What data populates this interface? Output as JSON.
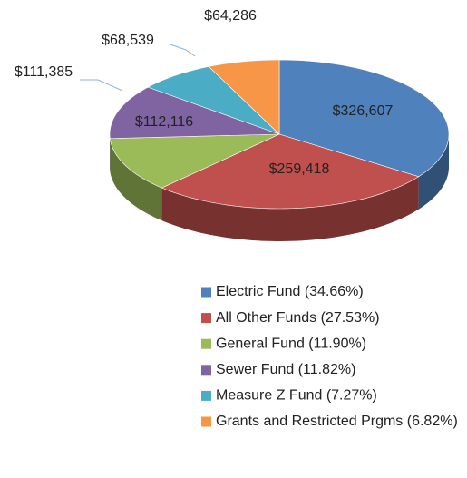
{
  "chart_data": {
    "type": "pie",
    "categories": [
      "Electric Fund (34.66%)",
      "All Other Funds (27.53%)",
      "General Fund (11.90%)",
      "Sewer Fund (11.82%)",
      "Measure Z Fund (7.27%)",
      "Grants and Restricted Prgms (6.82%)"
    ],
    "values": [
      326607,
      259418,
      112116,
      111385,
      68539,
      64286
    ],
    "value_labels": [
      "$326,607",
      "$259,418",
      "$112,116",
      "$111,385",
      "$68,539",
      "$64,286"
    ],
    "colors": [
      "#4f81bd",
      "#c0504d",
      "#9bbb59",
      "#8064a2",
      "#4bacc6",
      "#f79646"
    ]
  }
}
